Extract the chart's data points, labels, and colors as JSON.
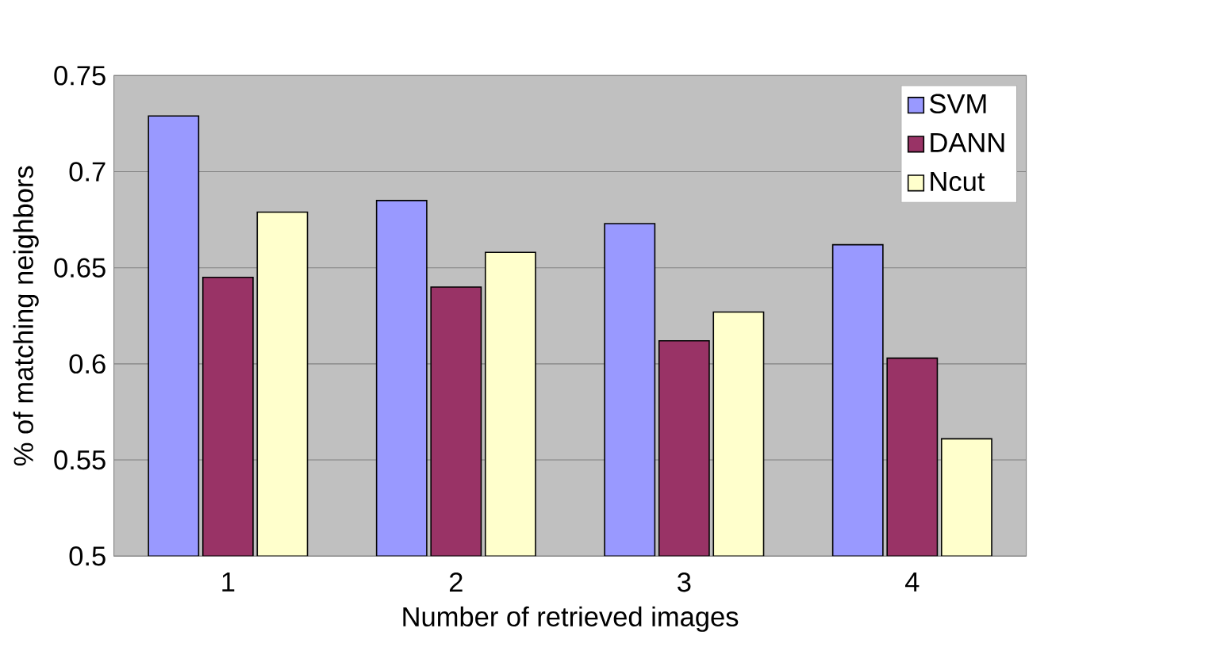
{
  "chart_data": {
    "type": "bar",
    "xlabel": "Number of retrieved images",
    "ylabel": "% of matching neighbors",
    "categories": [
      "1",
      "2",
      "3",
      "4"
    ],
    "series": [
      {
        "name": "SVM",
        "color": "#9999ff",
        "values": [
          0.729,
          0.685,
          0.673,
          0.662
        ]
      },
      {
        "name": "DANN",
        "color": "#993366",
        "values": [
          0.645,
          0.64,
          0.612,
          0.603
        ]
      },
      {
        "name": "Ncut",
        "color": "#ffffcc",
        "values": [
          0.679,
          0.658,
          0.627,
          0.561
        ]
      }
    ],
    "ylim": [
      0.5,
      0.75
    ],
    "yticks": [
      0.5,
      0.55,
      0.6,
      0.65,
      0.7,
      0.75
    ],
    "grid": "y",
    "legend": "top right"
  }
}
